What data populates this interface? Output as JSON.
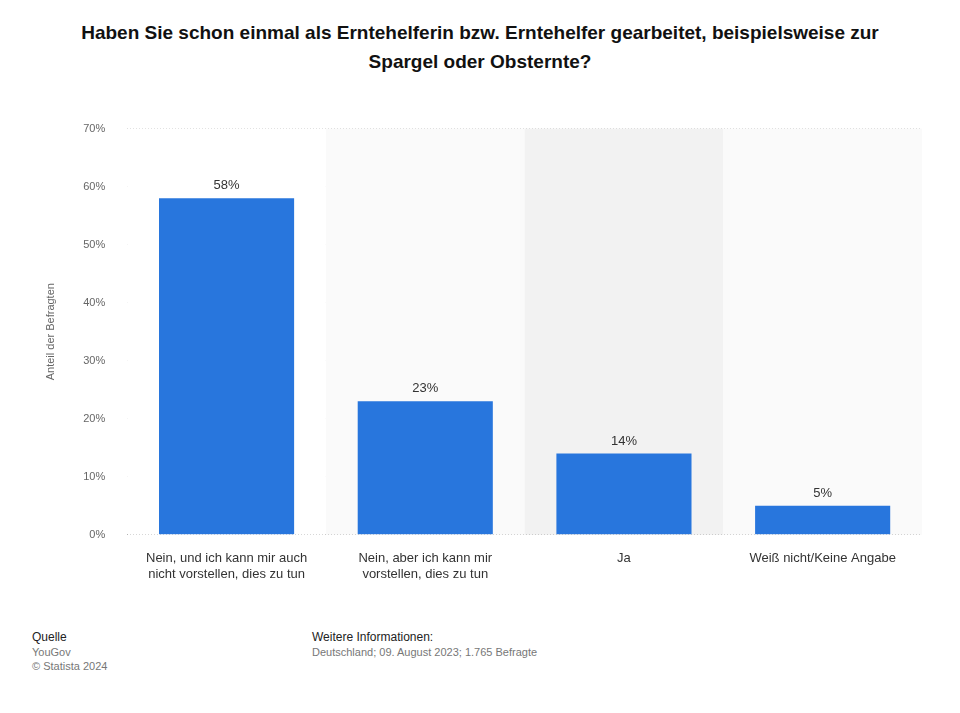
{
  "chart_data": {
    "type": "bar",
    "title": "Haben Sie schon einmal als Erntehelferin bzw. Erntehelfer gearbeitet, beispielsweise zur Spargel oder Obsternte?",
    "y_label": "Anteil der Befragten",
    "categories": [
      "Nein, und ich kann mir auch nicht vorstellen, dies zu tun",
      "Nein, aber ich kann mir vorstellen, dies zu tun",
      "Ja",
      "Weiß nicht/Keine Angabe"
    ],
    "values": [
      58,
      23,
      14,
      5
    ],
    "value_labels": [
      "58%",
      "23%",
      "14%",
      "5%"
    ],
    "color": "#2876dd",
    "ylim": [
      0,
      70
    ],
    "yticks": [
      {
        "value": 0,
        "label": "0%"
      },
      {
        "value": 10,
        "label": "10%"
      },
      {
        "value": 20,
        "label": "20%"
      },
      {
        "value": 30,
        "label": "30%"
      },
      {
        "value": 40,
        "label": "40%"
      },
      {
        "value": 50,
        "label": "50%"
      },
      {
        "value": 60,
        "label": "60%"
      },
      {
        "value": 70,
        "label": "70%"
      }
    ],
    "grid": true,
    "data_labels": true,
    "footer": {
      "source_label": "Quelle",
      "source": "YouGov",
      "copyright": "© Statista 2024",
      "info_label": "Weitere Informationen:",
      "info": "Deutschland; 09. August 2023; 1.765 Befragte"
    }
  }
}
